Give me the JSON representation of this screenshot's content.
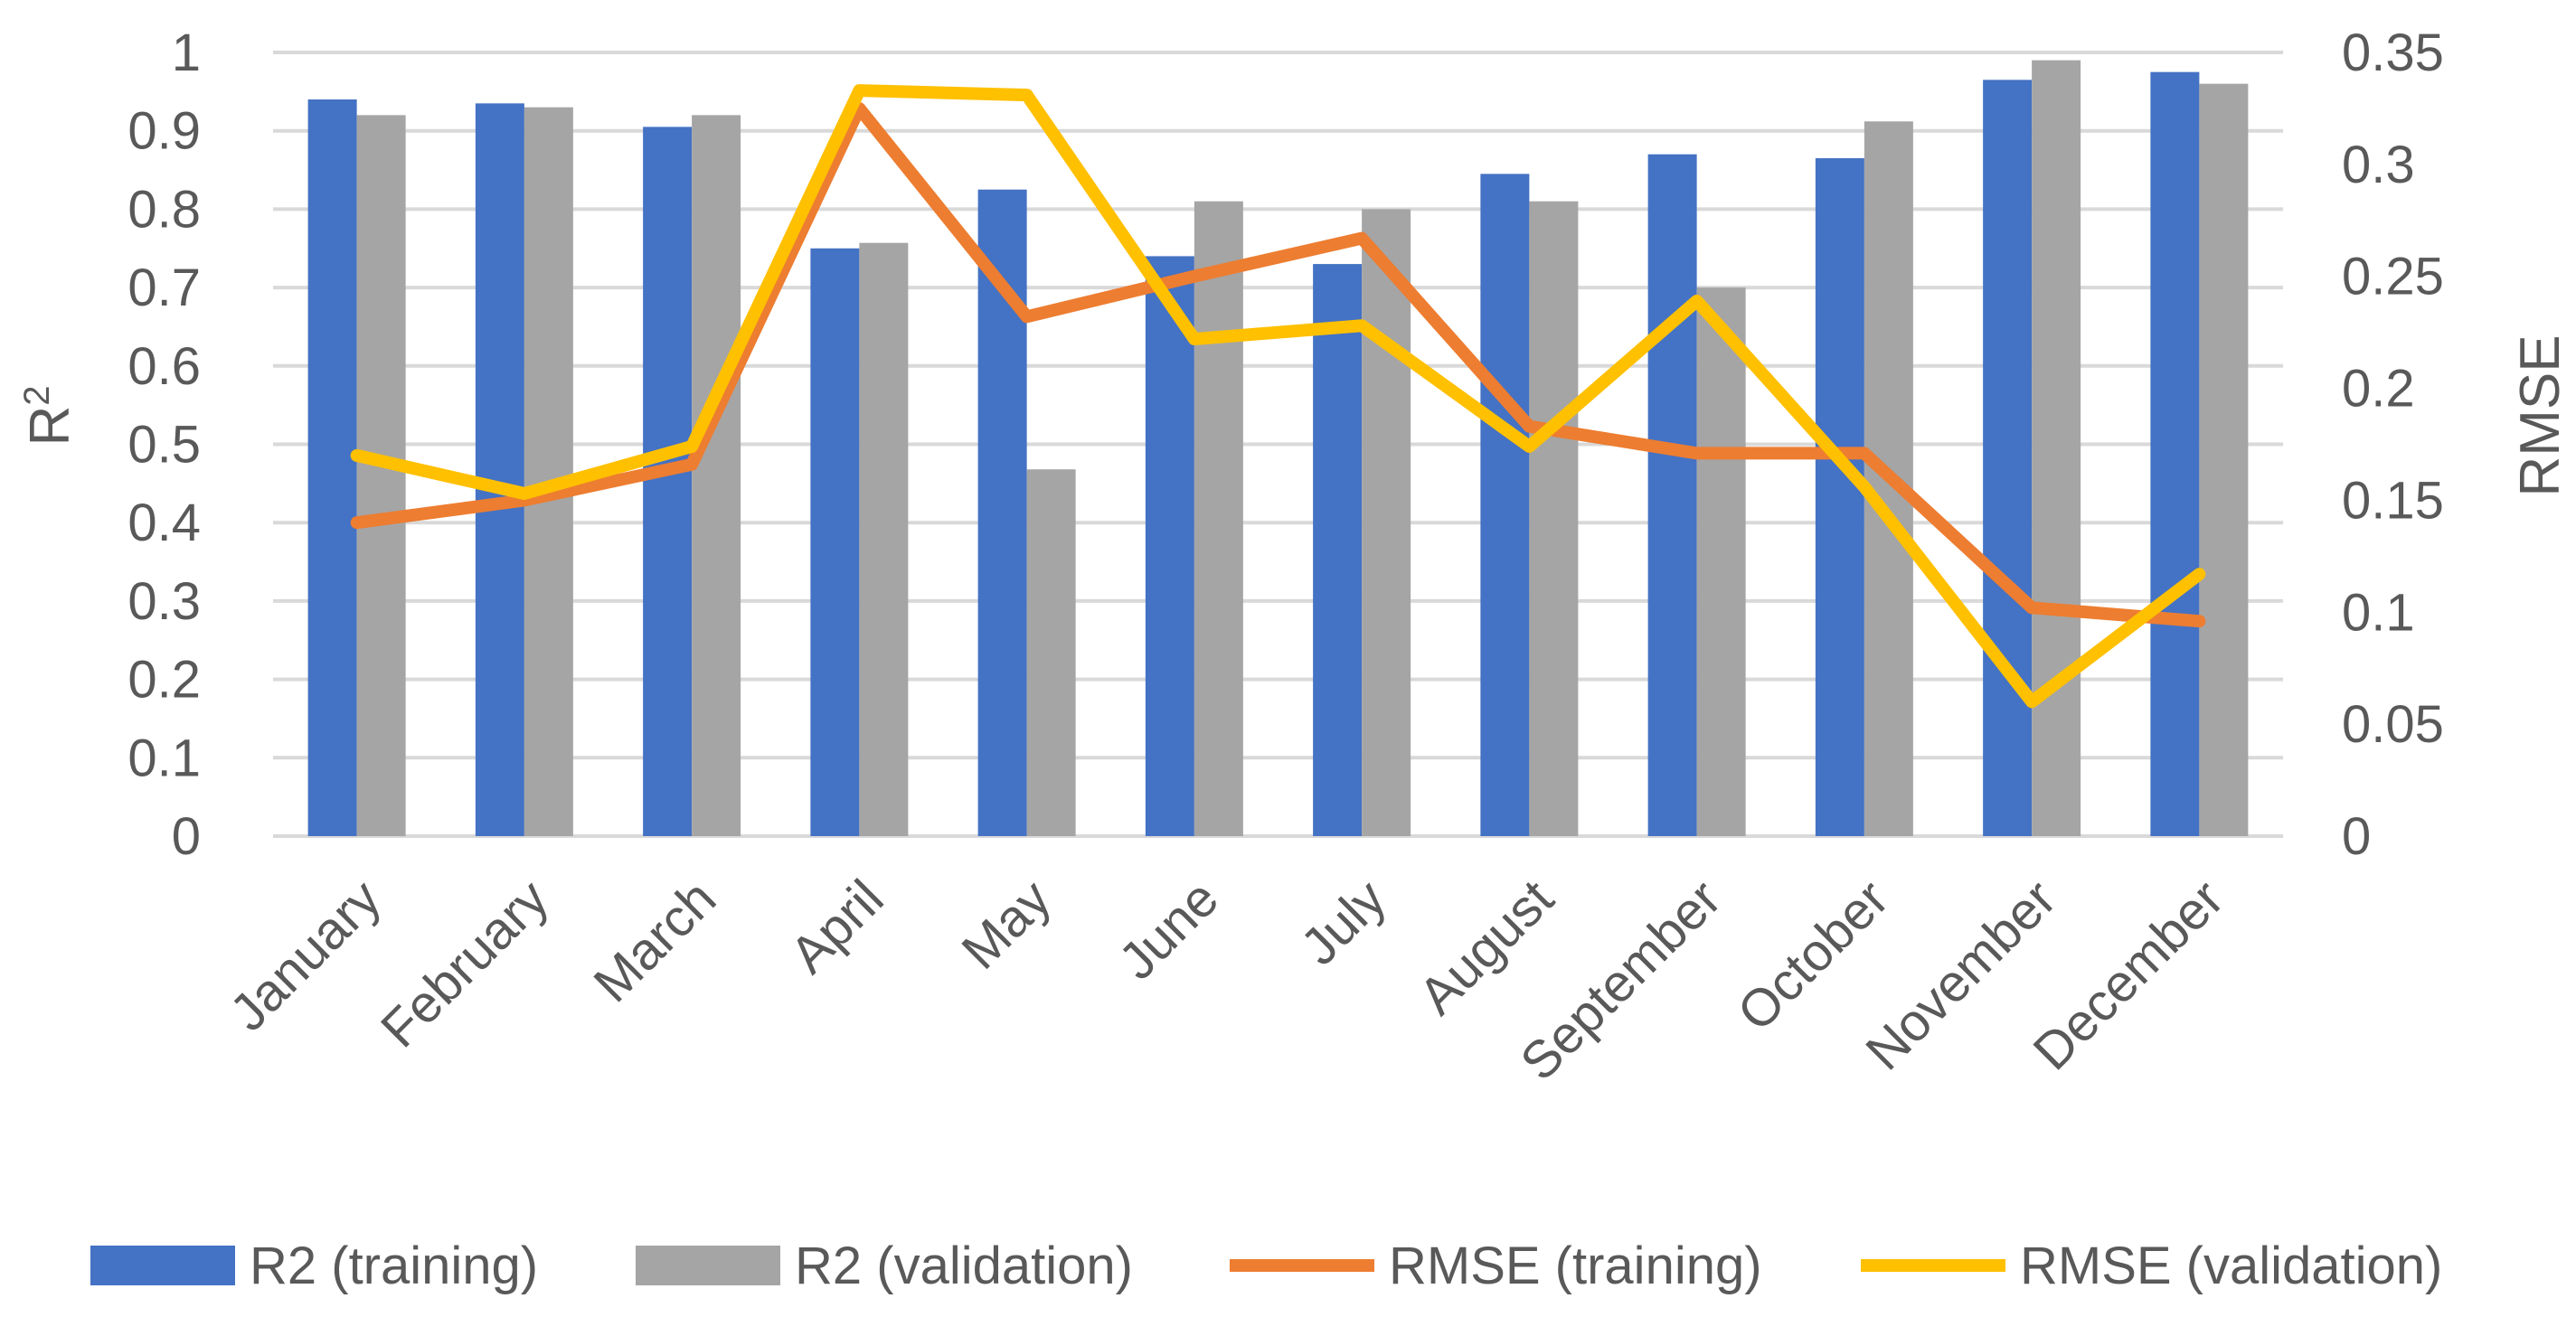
{
  "chart_data": {
    "type": "bar",
    "title": "",
    "categories": [
      "January",
      "February",
      "March",
      "April",
      "May",
      "June",
      "July",
      "August",
      "September",
      "October",
      "November",
      "December"
    ],
    "series": [
      {
        "name": "R2 (training)",
        "kind": "bar",
        "axis": "left",
        "color": "#4472C4",
        "values": [
          0.94,
          0.935,
          0.905,
          0.75,
          0.825,
          0.74,
          0.73,
          0.845,
          0.87,
          0.865,
          0.965,
          0.975
        ]
      },
      {
        "name": "R2 (validation)",
        "kind": "bar",
        "axis": "left",
        "color": "#A5A5A5",
        "values": [
          0.92,
          0.93,
          0.92,
          0.757,
          0.468,
          0.81,
          0.8,
          0.81,
          0.7,
          0.912,
          0.99,
          0.96
        ]
      },
      {
        "name": "RMSE (training)",
        "kind": "line",
        "axis": "right",
        "color": "#ED7D31",
        "values": [
          0.14,
          0.15,
          0.166,
          0.325,
          0.232,
          0.25,
          0.267,
          0.183,
          0.171,
          0.171,
          0.102,
          0.096
        ]
      },
      {
        "name": "RMSE (validation)",
        "kind": "line",
        "axis": "right",
        "color": "#FFC000",
        "values": [
          0.17,
          0.153,
          0.174,
          0.333,
          0.331,
          0.222,
          0.228,
          0.174,
          0.239,
          0.156,
          0.06,
          0.117
        ]
      }
    ],
    "y_left": {
      "label_base": "R",
      "label_sup": "2",
      "ylim": [
        0,
        1
      ],
      "ticks": [
        "0",
        "0.1",
        "0.2",
        "0.3",
        "0.4",
        "0.5",
        "0.6",
        "0.7",
        "0.8",
        "0.9",
        "1"
      ]
    },
    "y_right": {
      "label": "RMSE",
      "ylim": [
        0,
        0.35
      ],
      "ticks": [
        "0",
        "0.05",
        "0.1",
        "0.15",
        "0.2",
        "0.25",
        "0.3",
        "0.35"
      ]
    },
    "grid": true,
    "legend": "bottom"
  }
}
